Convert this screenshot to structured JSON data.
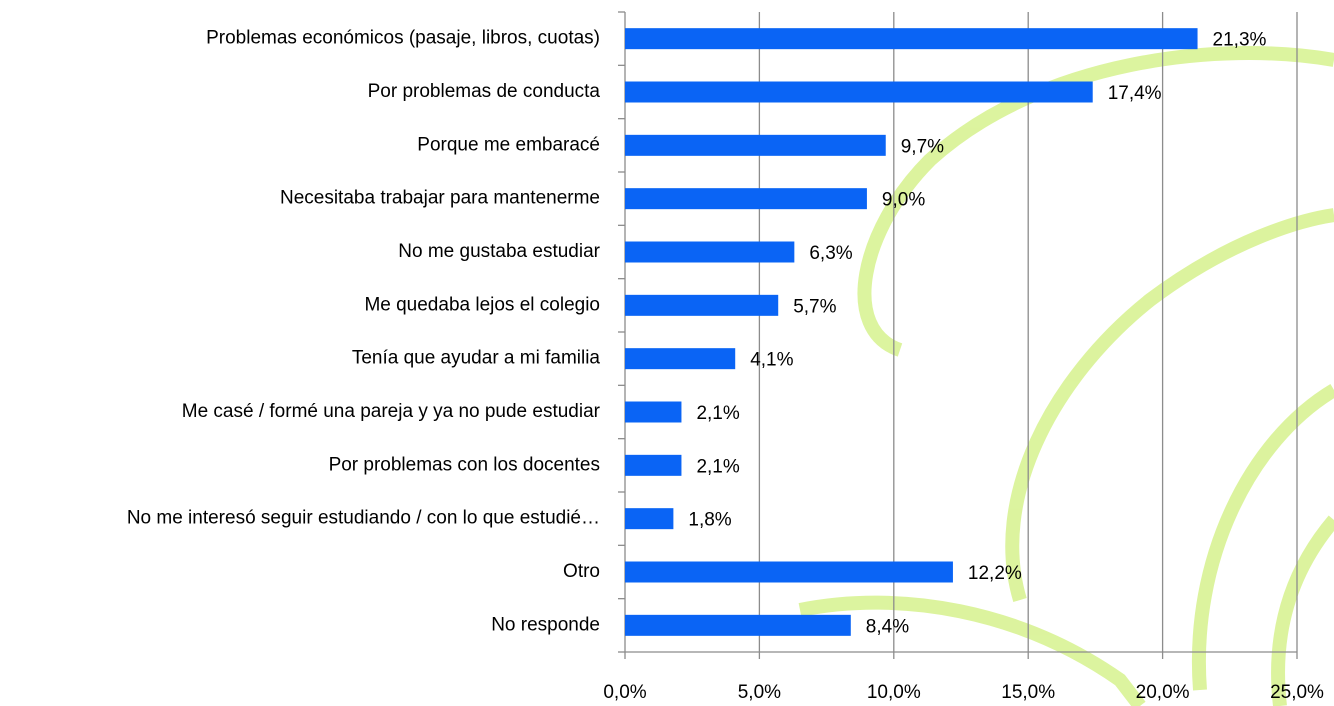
{
  "chart_data": {
    "type": "bar",
    "orientation": "horizontal",
    "categories": [
      "Problemas económicos (pasaje, libros, cuotas)",
      "Por problemas de conducta",
      "Porque me embaracé",
      "Necesitaba trabajar para mantenerme",
      "No me gustaba estudiar",
      "Me quedaba lejos el colegio",
      "Tenía que ayudar a mi familia",
      "Me casé / formé una pareja y ya no pude estudiar",
      "Por problemas con los docentes",
      "No me interesó seguir estudiando / con lo que estudié…",
      "Otro",
      "No responde"
    ],
    "values": [
      21.3,
      17.4,
      9.7,
      9.0,
      6.3,
      5.7,
      4.1,
      2.1,
      2.1,
      1.8,
      12.2,
      8.4
    ],
    "value_labels": [
      "21,3%",
      "17,4%",
      "9,7%",
      "9,0%",
      "6,3%",
      "5,7%",
      "4,1%",
      "2,1%",
      "2,1%",
      "1,8%",
      "12,2%",
      "8,4%"
    ],
    "color": "#0a64f5",
    "xlim": [
      0,
      25
    ],
    "xticks": [
      {
        "value": 0,
        "label": "0,0%"
      },
      {
        "value": 5,
        "label": "5,0%"
      },
      {
        "value": 10,
        "label": "10,0%"
      },
      {
        "value": 15,
        "label": "15,0%"
      },
      {
        "value": 20,
        "label": "20,0%"
      },
      {
        "value": 25,
        "label": "25,0%"
      }
    ],
    "grid": true
  }
}
